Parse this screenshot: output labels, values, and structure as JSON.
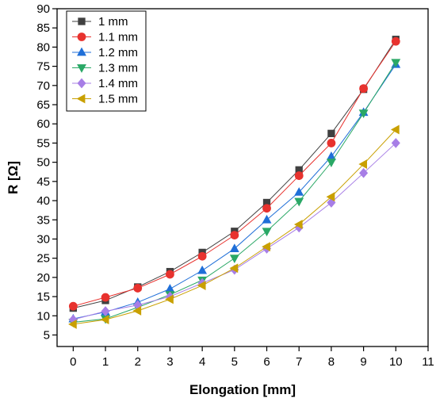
{
  "chart_data": {
    "type": "line",
    "title": "",
    "xlabel": "Elongation [mm]",
    "ylabel": "R [Ω]",
    "xlim": [
      -0.5,
      11
    ],
    "ylim": [
      2,
      90
    ],
    "x_ticks": [
      0,
      1,
      2,
      3,
      4,
      5,
      6,
      7,
      8,
      9,
      10,
      11
    ],
    "y_ticks": [
      5,
      10,
      15,
      20,
      25,
      30,
      35,
      40,
      45,
      50,
      55,
      60,
      65,
      70,
      75,
      80,
      85,
      90
    ],
    "grid": false,
    "legend_position": "top-left",
    "x": [
      0,
      1,
      2,
      3,
      4,
      5,
      6,
      7,
      8,
      9,
      10
    ],
    "series": [
      {
        "name": "1 mm",
        "color": "#404040",
        "marker": "square",
        "values": [
          12.0,
          14.0,
          17.5,
          21.5,
          26.5,
          32.0,
          39.5,
          48.0,
          57.5,
          69.0,
          82.0
        ]
      },
      {
        "name": "1.1 mm",
        "color": "#e8322e",
        "marker": "circle",
        "values": [
          12.5,
          14.8,
          17.2,
          20.8,
          25.5,
          31.0,
          38.0,
          46.5,
          55.0,
          69.2,
          81.5
        ]
      },
      {
        "name": "1.2 mm",
        "color": "#1f6fd8",
        "marker": "triangle-up",
        "values": [
          9.2,
          11.0,
          13.5,
          17.0,
          21.8,
          27.5,
          35.0,
          42.2,
          51.5,
          63.0,
          75.5
        ]
      },
      {
        "name": "1.3 mm",
        "color": "#2aa866",
        "marker": "triangle-down",
        "values": [
          8.3,
          9.2,
          12.2,
          15.5,
          19.3,
          25.0,
          32.0,
          39.8,
          50.0,
          62.8,
          76.0
        ]
      },
      {
        "name": "1.4 mm",
        "color": "#a77ee6",
        "marker": "diamond",
        "values": [
          9.0,
          11.2,
          12.8,
          15.0,
          18.5,
          22.0,
          27.5,
          33.0,
          39.5,
          47.2,
          55.0
        ]
      },
      {
        "name": "1.5 mm",
        "color": "#c9a000",
        "marker": "triangle-left",
        "values": [
          7.8,
          9.0,
          11.3,
          14.3,
          17.9,
          22.4,
          28.0,
          33.8,
          41.0,
          49.5,
          58.5
        ]
      }
    ]
  }
}
